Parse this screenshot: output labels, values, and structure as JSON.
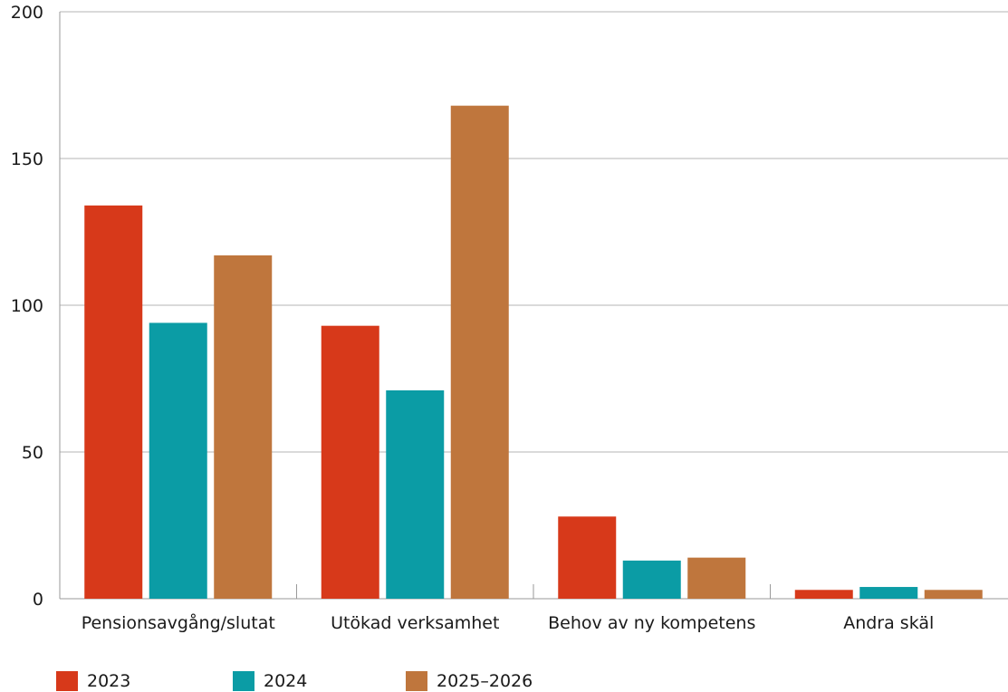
{
  "chart_data": {
    "type": "bar",
    "title": "",
    "xlabel": "",
    "ylabel": "",
    "categories": [
      "Pensionsavgång/slutat",
      "Utökad verksamhet",
      "Behov av ny kompetens",
      "Andra skäl"
    ],
    "series": [
      {
        "name": "2023",
        "color": "#d7391a",
        "values": [
          134,
          93,
          28,
          3
        ]
      },
      {
        "name": "2024",
        "color": "#0b9ca5",
        "values": [
          94,
          71,
          13,
          4
        ]
      },
      {
        "name": "2025–2026",
        "color": "#bf763d",
        "values": [
          117,
          168,
          14,
          3
        ]
      }
    ],
    "ylim": [
      0,
      200
    ],
    "yticks": [
      "0",
      "50",
      "100",
      "150",
      "200"
    ],
    "grid": true,
    "legend_position": "bottom-left"
  }
}
